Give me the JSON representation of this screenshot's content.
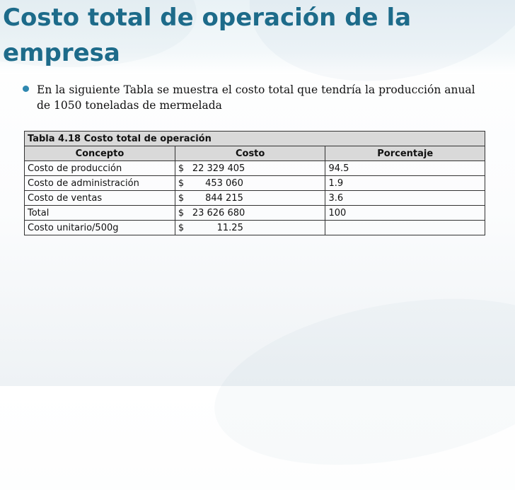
{
  "slide": {
    "title": "Costo total de operación de la empresa",
    "bullet": "En la siguiente Tabla se muestra el costo total que tendría la producción anual de 1050 toneladas de mermelada"
  },
  "table": {
    "caption": "Tabla 4.18 Costo total de operación",
    "headers": [
      "Concepto",
      "Costo",
      "Porcentaje"
    ],
    "rows": [
      {
        "concepto": "Costo de producción",
        "moneda": "$",
        "costo": "22 329 405",
        "porcentaje": "94.5"
      },
      {
        "concepto": "Costo de administración",
        "moneda": "$",
        "costo": "453 060",
        "porcentaje": "1.9"
      },
      {
        "concepto": "Costo de ventas",
        "moneda": "$",
        "costo": "844 215",
        "porcentaje": "3.6"
      },
      {
        "concepto": "Total",
        "moneda": "$",
        "costo": "23 626 680",
        "porcentaje": "100"
      },
      {
        "concepto": "Costo unitario/500g",
        "moneda": "$",
        "costo": "11.25",
        "porcentaje": ""
      }
    ]
  },
  "colors": {
    "title": "#1d6b8a",
    "bullet": "#2f88b0",
    "table_header_bg": "#d9d9d9"
  }
}
